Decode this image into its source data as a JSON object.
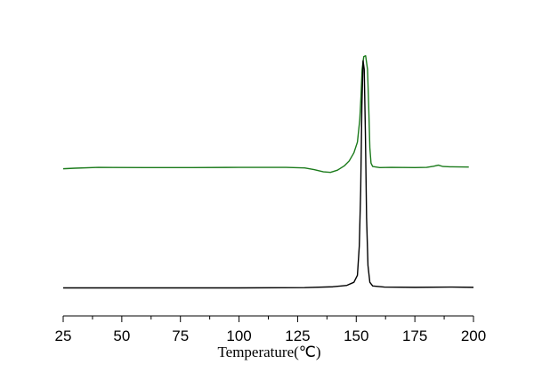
{
  "chart_data": {
    "type": "line",
    "title": "",
    "xlabel": "Temperature(℃)",
    "ylabel": "",
    "xlim": [
      25,
      200
    ],
    "xticks": [
      25,
      50,
      75,
      100,
      125,
      150,
      175,
      200
    ],
    "yaxis_visible": false,
    "grid": false,
    "legend": "none",
    "y_units": "relative signal (arbitrary, 0 = bottom of plot area, 100 = top)",
    "series": [
      {
        "color": "#1a7a1a",
        "points": [
          [
            25,
            52.5
          ],
          [
            30,
            52.7
          ],
          [
            40,
            53.0
          ],
          [
            60,
            52.9
          ],
          [
            80,
            52.9
          ],
          [
            100,
            53.0
          ],
          [
            120,
            53.0
          ],
          [
            128,
            52.8
          ],
          [
            132,
            52.2
          ],
          [
            136,
            51.4
          ],
          [
            139,
            51.2
          ],
          [
            142,
            52.0
          ],
          [
            145,
            53.6
          ],
          [
            147,
            55.3
          ],
          [
            149,
            58.2
          ],
          [
            150.5,
            62.0
          ],
          [
            151.5,
            70.0
          ],
          [
            152,
            78.0
          ],
          [
            152.5,
            88.0
          ],
          [
            153.2,
            92.5
          ],
          [
            154,
            92.8
          ],
          [
            154.8,
            88.0
          ],
          [
            155.3,
            75.0
          ],
          [
            155.8,
            60.0
          ],
          [
            156.3,
            54.5
          ],
          [
            157,
            53.3
          ],
          [
            160,
            52.9
          ],
          [
            165,
            53.0
          ],
          [
            175,
            52.9
          ],
          [
            180,
            53.0
          ],
          [
            183,
            53.4
          ],
          [
            185,
            53.8
          ],
          [
            187,
            53.3
          ],
          [
            190,
            53.2
          ],
          [
            198,
            53.1
          ]
        ]
      },
      {
        "color": "#000000",
        "points": [
          [
            25,
            10.0
          ],
          [
            60,
            10.0
          ],
          [
            100,
            10.0
          ],
          [
            128,
            10.1
          ],
          [
            140,
            10.4
          ],
          [
            146,
            10.9
          ],
          [
            149,
            12.0
          ],
          [
            150.5,
            14.5
          ],
          [
            151.3,
            25.0
          ],
          [
            151.9,
            45.0
          ],
          [
            152.4,
            75.0
          ],
          [
            152.9,
            91.0
          ],
          [
            153.4,
            88.0
          ],
          [
            153.9,
            65.0
          ],
          [
            154.4,
            35.0
          ],
          [
            155,
            18.0
          ],
          [
            155.8,
            12.0
          ],
          [
            157,
            10.7
          ],
          [
            162,
            10.3
          ],
          [
            175,
            10.2
          ],
          [
            190,
            10.3
          ],
          [
            200,
            10.2
          ]
        ]
      }
    ]
  }
}
